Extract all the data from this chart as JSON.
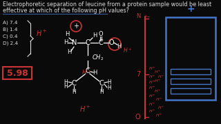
{
  "bg_color": "#0a0a0a",
  "title_line1": "Electrophoretic separation of leucine from a protein sample would be least",
  "title_line2": "effective at which of the following pH values?",
  "title_color": "#dddddd",
  "title_fontsize": 5.8,
  "options": [
    "A) 7.4",
    "B) 1.4",
    "C) 0.4",
    "D) 2.4"
  ],
  "options_color": "#dddddd",
  "options_fontsize": 5.2,
  "answer_text": "5.98",
  "answer_color": "#cc3333",
  "hplus_color": "#cc3333",
  "molecule_color": "#ffffff",
  "axis_color": "#4477cc",
  "figsize": [
    3.2,
    1.8
  ],
  "dpi": 100
}
